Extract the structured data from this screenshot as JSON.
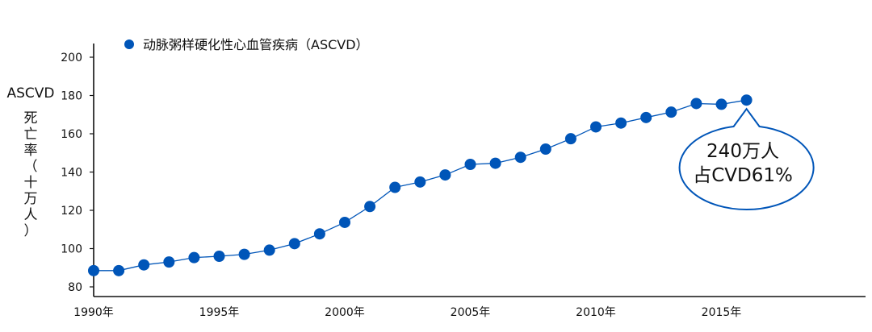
{
  "chart_data": {
    "type": "line",
    "legend": {
      "label": "动脉粥样硬化性心血管疾病（ASCVD）",
      "placement": "top-left"
    },
    "ylabel_top": "ASCVD",
    "ylabel_vertical": [
      "死",
      "亡",
      "率",
      "（",
      "十",
      "万",
      "人",
      "）"
    ],
    "ylim": [
      80,
      200
    ],
    "yticks": [
      80,
      100,
      120,
      140,
      160,
      180,
      200
    ],
    "xlim": [
      1990,
      2021
    ],
    "xticks": [
      {
        "value": 1990,
        "label": "1990年"
      },
      {
        "value": 1995,
        "label": "1995年"
      },
      {
        "value": 2000,
        "label": "2000年"
      },
      {
        "value": 2005,
        "label": "2005年"
      },
      {
        "value": 2010,
        "label": "2010年"
      },
      {
        "value": 2015,
        "label": "2015年"
      }
    ],
    "series": [
      {
        "name": "动脉粥样硬化性心血管疾病（ASCVD）",
        "color": "#0055b8",
        "x": [
          1990,
          1991,
          1992,
          1993,
          1994,
          1995,
          1996,
          1997,
          1998,
          1999,
          2000,
          2001,
          2002,
          2003,
          2004,
          2005,
          2006,
          2007,
          2008,
          2009,
          2010,
          2011,
          2012,
          2013,
          2014,
          2015,
          2016
        ],
        "y": [
          88.5,
          88.5,
          91.5,
          93,
          95.3,
          96,
          97,
          99.2,
          102.6,
          107.7,
          113.7,
          122,
          132,
          134.8,
          138.5,
          144,
          144.6,
          147.7,
          152,
          157.4,
          163.6,
          165.6,
          168.5,
          171.3,
          175.8,
          175.4,
          177.6
        ]
      }
    ],
    "annotation": {
      "lines": [
        "240万人",
        "占CVD61%"
      ],
      "target_x": 2016
    },
    "grid": false
  }
}
